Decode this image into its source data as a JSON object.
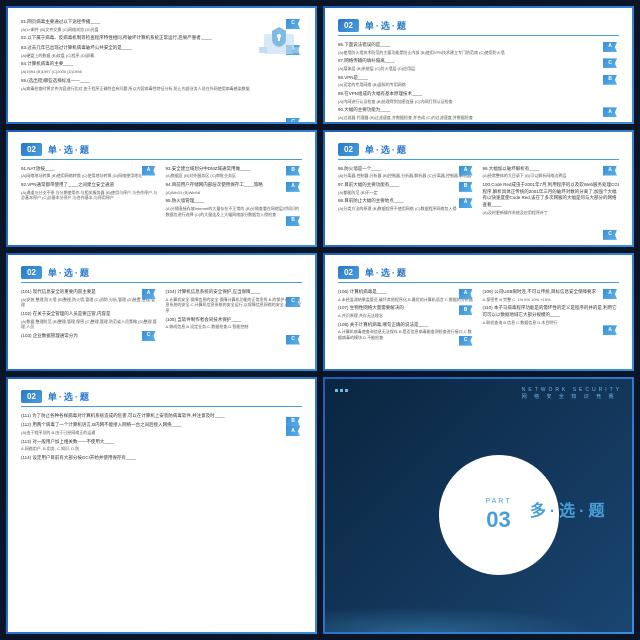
{
  "section": {
    "num": "02",
    "title": "单·选·题"
  },
  "part": {
    "label": "PART",
    "num": "03",
    "title": "多·选·题",
    "header": "NETWORK SECURITY",
    "subheader": "网 络 安 全 知 识 竞 赛"
  },
  "colors": {
    "primary": "#2878c8",
    "accent": "#4a9ed8",
    "bg": "#0a1628"
  },
  "slides": [
    {
      "cols": [
        {
          "items": [
            {
              "q": "81.网页病毒主要通过以下途径传播____",
              "o": "(A)1+邮件 (B)文件交换 (C)网络浏览 (D)光盘",
              "f": "C",
              "fp": {
                "r": "2px",
                "t": "0px"
              }
            },
            {
              "q": "82.以下属于病毒、反病毒机制等检查程序特性相同,所破坏计算机系统正常运行,后果严重者,____",
              "o": ""
            },
            {
              "q": "83.过去几年已出现过计算机病毒破坏公共安全的是____",
              "o": "(A)硬盘上的数据 (B)软盘 (C)程序 (D)屏幕",
              "f": "A",
              "fp": {
                "r": "2px",
                "t": "0px"
              }
            },
            {
              "q": "84.计算机病毒的主要____",
              "o": "(A)1994 (B)1997 (C)2000 (D)1998"
            },
            {
              "q": "85.(选出错)哪些选择标准——____",
              "o": "(A)病毒检查时将文件内容进行比对,由于程序正确性会有问题,所以内容病毒性特征分析,防止内部业务人员在外网使用病毒感染数据",
              "f": "C",
              "fp": {
                "r": "2px",
                "t": "40px"
              }
            }
          ]
        },
        {
          "items": [
            {
              "q": "86.下面说法错误的是____",
              "o": "(A)使用防火墙技术防范的主要功能是防止内部 (B)使用VPN技术建立专门防范病 (C)使用防火墙",
              "f": "A",
              "fp": {
                "r": "2px",
                "t": "0px"
              }
            },
            {
              "q": "87.网络传输的填补隔离____",
              "o": "(A)煤体层 (B)系统层 (C)防火墙层 (D)应用层",
              "f": "C",
              "fp": {
                "r": "2px",
                "t": "0px"
              }
            },
            {
              "q": "88.VPN是____",
              "o": "(A)设定的专用网络 (B)虚拟的专用网络",
              "f": "B",
              "fp": {
                "r": "2px",
                "t": "0px"
              }
            },
            {
              "q": "89.在VPN组成的大幅有基本原理技术____",
              "o": "(A)内网进行认证检查 (B)处理得到加密连接 (C)内网打到认证检查"
            },
            {
              "q": "90.大幅的主要功能为____",
              "o": "(A)过滤器,代理器 (B)过滤速度,并数据检查,并合成 (C)内过滤速度,并数据检查",
              "f": "A",
              "fp": {
                "r": "2px",
                "t": "0px"
              }
            }
          ]
        }
      ],
      "illus": true
    },
    {
      "cols": [
        {
          "items": [
            {
              "q": "91.NAT放按____",
              "o": "(A)网络地址转换 (B)使用网络转换 (C)使用地址转换 (D)网络使用地址",
              "f": "A",
              "fp": {
                "r": "2px",
                "t": "0px"
              }
            },
            {
              "q": "92.VPN通常都带使用了____之间建立安全通道",
              "o": "(A)通道与分支不停,与分期使用作,与相关服务器 (B)使用与停户,与合作停户,与总基本停户 (C)总基本分停户,与合作基本,与停用停户",
              "f": "A",
              "fp": {
                "r": "2px",
                "t": "72px"
              }
            }
          ]
        },
        {
          "items": [
            {
              "q": "93.安全建立域划分中DMZ域通常用做____",
              "o": "(A)数据区 (B)对外服务区 (C)审批业务区",
              "f": "B",
              "fp": {
                "r": "2px",
                "t": "0px"
              }
            },
            {
              "q": "94.目前用户存储网内部层次使用保存工____策略",
              "o": "(A)Win31 (B)Win98",
              "f": "A",
              "fp": {
                "r": "2px",
                "t": "0px"
              }
            },
            {
              "q": "95.防火墙管理____",
              "o": "(A)分隔直接存放Internet的大量存在不正常的 (B)分隔查看在网络层对知识的数据包进行选择 (C)的大量连及上大幅网络部分数据包入侵检查",
              "f": "B",
              "fp": {
                "r": "2px",
                "t": "18px"
              }
            }
          ]
        },
        {
          "items": [
            {
              "q": "96.防火墙是一个____",
              "o": "(A)分离器,控制器,分析器 (B)控制器,分析器,解析器 (C)分离器,控制器,解析器",
              "f": "A",
              "fp": {
                "r": "2px",
                "t": "0px"
              }
            },
            {
              "q": "97.目前大幅的主要功能有____",
              "o": "(A)都能防范 (B)不一定",
              "f": "B",
              "fp": {
                "r": "2px",
                "t": "0px"
              }
            },
            {
              "q": "98.目前防止大幅的主要地点____",
              "o": "(A)分类方法的原理 (B)数据程序不使用网络 (C)数据程序网络包入侵",
              "f": "A",
              "fp": {
                "r": "2px",
                "t": "0px"
              }
            }
          ]
        },
        {
          "items": [
            {
              "q": "99.大幅加以破坏解析有____",
              "o": "(A)经常整体的大目录下 (B)可以解析网络边界层",
              "f": "A",
              "fp": {
                "r": "2px",
                "t": "0px"
              }
            },
            {
              "q": "100.Code Red成虫于2001年7月,利用程序的以及软Web服务处理CGI程序,解析具体正传统的2001年三月的破坏对数的分离了,加强个大幅有以快速度使Code Red,该在了多次网服的大幅是何与大部分的网络查看____",
              "o": "(A)及时更新操作系统及应用程序补丁",
              "f": "C",
              "fp": {
                "r": "2px",
                "t": "48px"
              }
            }
          ]
        }
      ]
    },
    {
      "cols": [
        {
          "items": [
            {
              "q": "(101) 现代信息安全的重要内容主要是",
              "o": "(A)安装,整理,防火墙 (B)整理,防火墙,管理 (C)消防,分析,管理 (D)装置,整理,管理",
              "f": "A",
              "fp": {
                "r": "2px",
                "t": "0px"
              }
            },
            {
              "q": "(102) 在关于安全管理的人员是要正管,内容是",
              "o": "(A)数据,整理防范 (B)整理,管理,保密 (C)整理,管理,防范或人员策略 (D)整理,管理,人员",
              "f": "C",
              "fp": {
                "r": "2px",
                "t": "20px"
              }
            },
            {
              "q": "(103) 企业数据管理通常分为"
            }
          ]
        },
        {
          "items": [
            {
              "q": "(104) 计算机信息系统的安全保护,应当保障____",
              "o": "A.计算机安全,保障信息的安全,保障计算机功能的正常发挥,B.的保护计算机信息系统的安全,C.计算机信息系统的安全运行,以保障信息网络的安全,D.数据程序",
              "f": "C",
              "fp": {
                "r": "2px",
                "t": "8px"
              }
            },
            {
              "q": "(105) 当软件制作者会同技术保护____",
              "o": "A.做成信息,B.设定业务,C.数据检查,D.智能控制",
              "f": "C",
              "fp": {
                "r": "2px",
                "t": "18px"
              }
            }
          ]
        },
        {
          "items": [
            {
              "q": "(106) 计算机病毒是____",
              "o": "A.未经监测结果监管员,破坏其他程序化,B.最优的计算机语言 C.数据的分析器",
              "f": "A",
              "fp": {
                "r": "2px",
                "t": "0px"
              }
            },
            {
              "q": "(107) 生物性网络大量需要解决的",
              "o": "A.共识原理,共存无法理念",
              "f": "B",
              "fp": {
                "r": "2px",
                "t": "0px"
              }
            },
            {
              "q": "(108) 关于计算机病毒,哪句正确的说法是____",
              "o": "A.计算机病毒使查询信息无法保存,B.是否信息病毒能查测检查进行接口,C.数据病毒的模块,D.不能检查"
            },
            {
              "q": "",
              "o": "",
              "f": "C",
              "fp": {
                "r": "2px",
                "t": "-8px"
              }
            }
          ]
        },
        {
          "items": [
            {
              "q": "(109) 公司USB限时连,不可以传统,目标信息安全保障要求",
              "o": "A.保密性 B.完整 C. 1% 5% 10% +15%",
              "f": "A",
              "fp": {
                "r": "2px",
                "t": "0px"
              }
            },
            {
              "q": "(110) 本子马病毒程序功能是的需坏性的定义是程序的并的是,利用它可可以以数据地域它大部分规模的____",
              "o": "A.联机查询 B.信息 C.数据信息 D.木目明行",
              "f": "A",
              "fp": {
                "r": "2px",
                "t": "20px"
              }
            }
          ]
        }
      ]
    },
    {
      "cols": [
        {
          "items": [
            {
              "q": "(111) 为了防止各种各样病毒对计算机系统造成的危害,可以在计算机上安装防病毒软件,并注意及时____",
              "o": "",
              "f": "B",
              "fp": {
                "r": "2px",
                "t": "4px"
              }
            },
            {
              "q": "(112) 用两个病毒了一个计算机语言,B内网不能接入网络一台之间后接入网络____",
              "o": "(A)由于程序员的,B.由于已经网络正的运通",
              "f": "A",
              "fp": {
                "r": "2px",
                "t": "4px"
              }
            },
            {
              "q": "(113) 对一般用户加上相关数——不使用大____",
              "o": "A.网络用户, B.用务, C.知识, D.防"
            },
            {
              "q": "(114) 设定用户目前有大部分按GCI开始并使用保存有____"
            }
          ]
        }
      ]
    }
  ]
}
